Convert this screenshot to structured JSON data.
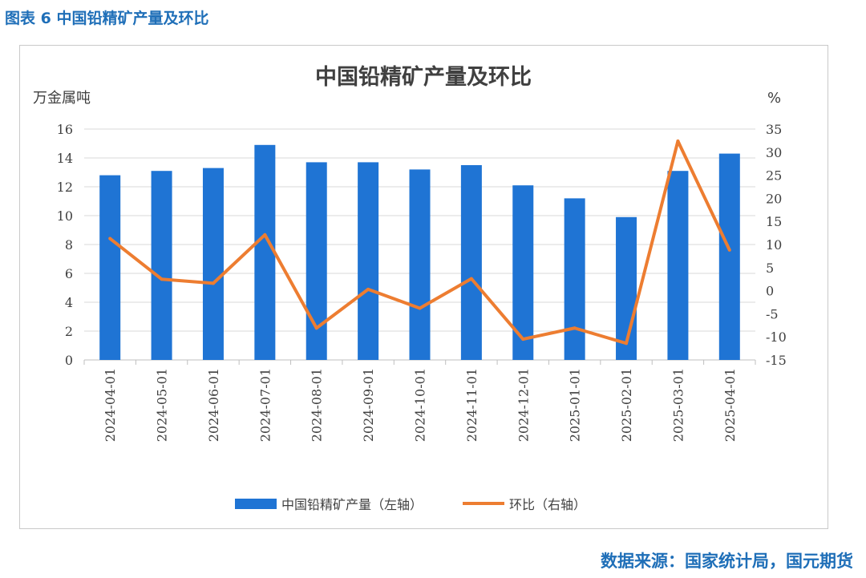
{
  "figure_caption": "图表 6 中国铅精矿产量及环比",
  "source_note": "数据来源：国家统计局，国元期货",
  "chart_data": {
    "type": "bar+line",
    "title": "中国铅精矿产量及环比",
    "left_unit": "万金属吨",
    "right_unit": "%",
    "categories": [
      "2024-04-01",
      "2024-05-01",
      "2024-06-01",
      "2024-07-01",
      "2024-08-01",
      "2024-09-01",
      "2024-10-01",
      "2024-11-01",
      "2024-12-01",
      "2025-01-01",
      "2025-02-01",
      "2025-03-01",
      "2025-04-01"
    ],
    "left_ticks": [
      "0",
      "2",
      "4",
      "6",
      "8",
      "10",
      "12",
      "14",
      "16"
    ],
    "right_ticks": [
      "-15",
      "-10",
      "-5",
      "0",
      "5",
      "10",
      "15",
      "20",
      "25",
      "30",
      "35"
    ],
    "ylim_left": [
      0,
      16
    ],
    "ylim_right": [
      -15,
      35
    ],
    "series": [
      {
        "name": "中国铅精矿产量（左轴）",
        "type": "bar",
        "axis": "left",
        "color": "#1f74d4",
        "values": [
          12.8,
          13.1,
          13.3,
          14.9,
          13.7,
          13.7,
          13.2,
          13.5,
          12.1,
          11.2,
          9.9,
          13.1,
          14.3
        ]
      },
      {
        "name": "环比（右轴）",
        "type": "line",
        "axis": "right",
        "color": "#ed7d31",
        "values": [
          11.3,
          2.5,
          1.6,
          12.1,
          -8.1,
          0.3,
          -3.8,
          2.6,
          -10.5,
          -8.1,
          -11.4,
          32.4,
          8.8
        ]
      }
    ],
    "legend_position": "bottom"
  }
}
